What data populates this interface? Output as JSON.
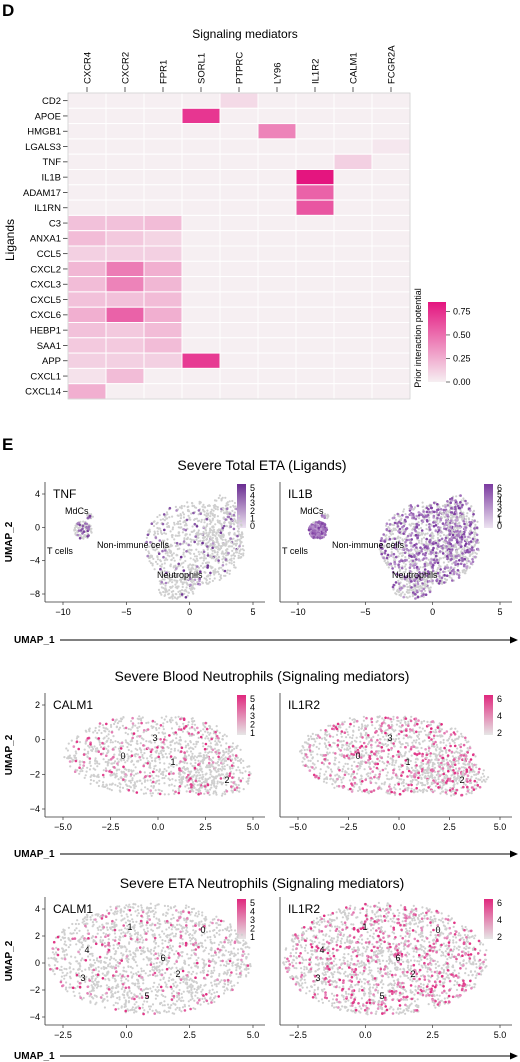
{
  "panel_d": {
    "panel_label": "D",
    "chart_data": {
      "type": "heatmap",
      "title": "Signaling mediators",
      "ylabel": "Ligands",
      "columns": [
        "CXCR4",
        "CXCR2",
        "FPR1",
        "SORL1",
        "PTPRC",
        "LY96",
        "IL1R2",
        "CALM1",
        "FCGR2A"
      ],
      "rows": [
        "CD2",
        "APOE",
        "HMGB1",
        "LGALS3",
        "TNF",
        "IL1B",
        "ADAM17",
        "IL1RN",
        "C3",
        "ANXA1",
        "CCL5",
        "CXCL2",
        "CXCL3",
        "CXCL5",
        "CXCL6",
        "HEBP1",
        "SAA1",
        "APP",
        "CXCL1",
        "CXCL14"
      ],
      "values": [
        [
          0,
          0,
          0,
          0,
          0.08,
          0,
          0,
          0,
          0
        ],
        [
          0,
          0,
          0,
          0.72,
          0,
          0,
          0,
          0,
          0
        ],
        [
          0,
          0,
          0,
          0,
          0,
          0.42,
          0,
          0,
          0
        ],
        [
          0,
          0,
          0,
          0,
          0,
          0,
          0,
          0,
          0.03
        ],
        [
          0,
          0,
          0,
          0,
          0,
          0,
          0,
          0.12,
          0
        ],
        [
          0,
          0,
          0,
          0,
          0,
          0,
          0.88,
          0,
          0
        ],
        [
          0,
          0,
          0,
          0,
          0,
          0,
          0.55,
          0,
          0
        ],
        [
          0,
          0,
          0,
          0,
          0,
          0,
          0.6,
          0,
          0
        ],
        [
          0.18,
          0.18,
          0.2,
          0,
          0,
          0,
          0,
          0,
          0
        ],
        [
          0.2,
          0.15,
          0.1,
          0,
          0,
          0,
          0,
          0,
          0
        ],
        [
          0.12,
          0.12,
          0.12,
          0,
          0,
          0,
          0,
          0,
          0
        ],
        [
          0.22,
          0.45,
          0.25,
          0,
          0,
          0,
          0,
          0,
          0
        ],
        [
          0.2,
          0.42,
          0.22,
          0,
          0,
          0,
          0,
          0,
          0
        ],
        [
          0.18,
          0.18,
          0.2,
          0,
          0,
          0,
          0,
          0,
          0
        ],
        [
          0.25,
          0.55,
          0.25,
          0,
          0,
          0,
          0,
          0,
          0
        ],
        [
          0.18,
          0.15,
          0.2,
          0,
          0,
          0,
          0,
          0,
          0
        ],
        [
          0.15,
          0.15,
          0.2,
          0,
          0,
          0,
          0,
          0,
          0
        ],
        [
          0.12,
          0.12,
          0.12,
          0.7,
          0,
          0,
          0,
          0,
          0
        ],
        [
          0.05,
          0.2,
          0,
          0,
          0,
          0,
          0,
          0,
          0
        ],
        [
          0.25,
          0,
          0,
          0,
          0,
          0,
          0,
          0,
          0
        ]
      ],
      "legend": {
        "title": "Prior interaction potential",
        "ticks": [
          "0.75",
          "0.50",
          "0.25",
          "0.00"
        ],
        "tick_values": [
          0.75,
          0.5,
          0.25,
          0
        ],
        "range": [
          0,
          0.85
        ]
      },
      "colors": {
        "low": "#f6eff2",
        "high": "#e4157f"
      }
    }
  },
  "panel_e": {
    "panel_label": "E",
    "cell_color": "#cfcfcf",
    "sections": [
      {
        "title": "Severe Total ETA (Ligands)",
        "xlabel": "UMAP_1",
        "ylabel": "UMAP_2",
        "xticks": [
          "−10",
          "−5",
          "0",
          "5"
        ],
        "yticks": [
          "4",
          "0",
          "−4",
          "−8"
        ],
        "plots": [
          {
            "gene": "TNF",
            "scale": [
              "5",
              "4",
              "3",
              "2",
              "1",
              "0"
            ],
            "clusters": [
              "MdCs",
              "T cells",
              "Non-immune cells",
              "Neutrophils"
            ],
            "highlight": "#6a2c91",
            "scale_low": "#ede3f1",
            "expressing_fraction": 0.1
          },
          {
            "gene": "IL1B",
            "scale": [
              "6",
              "5",
              "4",
              "3",
              "2",
              "1",
              "0"
            ],
            "clusters": [
              "MdCs",
              "T cells",
              "Non-immune cells",
              "Neutrophils"
            ],
            "highlight": "#7b3aa0",
            "scale_low": "#ede3f1",
            "expressing_fraction": 0.6
          }
        ]
      },
      {
        "title": "Severe Blood Neutrophils (Signaling mediators)",
        "xlabel": "UMAP_1",
        "ylabel": "UMAP_2",
        "xticks": [
          "−5.0",
          "−2.5",
          "0.0",
          "2.5",
          "5.0"
        ],
        "yticks": [
          "2",
          "0",
          "−2",
          "−4"
        ],
        "plots": [
          {
            "gene": "CALM1",
            "scale": [
              "5",
              "4",
              "3",
              "2",
              "1"
            ],
            "clusters": [
              "0",
              "1",
              "2",
              "3"
            ],
            "highlight": "#e0287e",
            "scale_low": "#e6e6e6",
            "expressing_fraction": 0.15
          },
          {
            "gene": "IL1R2",
            "scale": [
              "6",
              "4",
              "2"
            ],
            "clusters": [
              "0",
              "1",
              "2",
              "3"
            ],
            "highlight": "#e0287e",
            "scale_low": "#e6e6e6",
            "expressing_fraction": 0.3
          }
        ]
      },
      {
        "title": "Severe ETA Neutrophils (Signaling mediators)",
        "xlabel": "UMAP_1",
        "ylabel": "UMAP_2",
        "xticks": [
          "−2.5",
          "0.0",
          "2.5",
          "5.0"
        ],
        "yticks": [
          "4",
          "2",
          "0",
          "−2",
          "−4"
        ],
        "plots": [
          {
            "gene": "CALM1",
            "scale": [
              "5",
              "4",
              "3",
              "2",
              "1"
            ],
            "clusters": [
              "0",
              "1",
              "2",
              "3",
              "4",
              "5",
              "6"
            ],
            "highlight": "#e0287e",
            "scale_low": "#e6e6e6",
            "expressing_fraction": 0.12
          },
          {
            "gene": "IL1R2",
            "scale": [
              "6",
              "4",
              "2"
            ],
            "clusters": [
              "0",
              "1",
              "2",
              "3",
              "4",
              "5",
              "6"
            ],
            "highlight": "#e0287e",
            "scale_low": "#e6e6e6",
            "expressing_fraction": 0.3
          }
        ]
      }
    ]
  }
}
